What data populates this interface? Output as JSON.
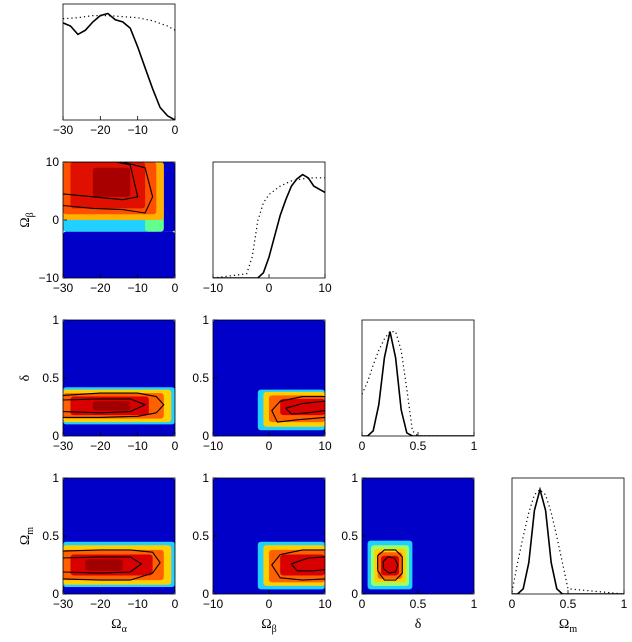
{
  "chart_data": {
    "type": "triangle-plot",
    "description_free": true,
    "parameters": [
      {
        "key": "Oa",
        "label_main": "Ω",
        "label_sub": "α",
        "range": [
          -30,
          0
        ],
        "ticks": [
          "-30",
          "-20",
          "-10",
          "0"
        ]
      },
      {
        "key": "Ob",
        "label_main": "Ω",
        "label_sub": "β",
        "range": [
          -10,
          10
        ],
        "ticks": [
          "-10",
          "0",
          "10"
        ]
      },
      {
        "key": "d",
        "label_main": "δ",
        "label_sub": "",
        "range": [
          0,
          1
        ],
        "ticks": [
          "0",
          "0.5",
          "1"
        ]
      },
      {
        "key": "Om",
        "label_main": "Ω",
        "label_sub": "m",
        "range": [
          0,
          1
        ],
        "ticks": [
          "0",
          "0.5",
          "1"
        ]
      }
    ],
    "marginals": [
      {
        "param": "Oa",
        "solid": {
          "x": [
            -30,
            -28,
            -26,
            -24,
            -22,
            -20,
            -18,
            -16,
            -14,
            -12,
            -10,
            -8,
            -6,
            -4,
            -2,
            0
          ],
          "y": [
            0.93,
            0.9,
            0.82,
            0.86,
            0.94,
            1.0,
            1.02,
            0.96,
            0.94,
            0.88,
            0.7,
            0.5,
            0.3,
            0.12,
            0.04,
            0.0
          ]
        },
        "dotted": {
          "x": [
            -30,
            -26,
            -22,
            -18,
            -14,
            -10,
            -6,
            -2,
            0
          ],
          "y": [
            0.97,
            0.98,
            1.0,
            1.0,
            0.99,
            0.98,
            0.95,
            0.9,
            0.86
          ]
        }
      },
      {
        "param": "Ob",
        "solid": {
          "x": [
            -10,
            -4,
            -2,
            -1,
            0,
            1,
            2,
            3,
            4,
            5,
            6,
            7,
            8,
            9,
            10
          ],
          "y": [
            0,
            0,
            0.0,
            0.05,
            0.2,
            0.4,
            0.6,
            0.75,
            0.88,
            0.95,
            0.99,
            0.96,
            0.88,
            0.85,
            0.82
          ]
        },
        "dotted": {
          "x": [
            -10,
            -4,
            -3,
            -2,
            -1,
            0,
            2,
            4,
            6,
            8,
            10
          ],
          "y": [
            0,
            0.04,
            0.2,
            0.55,
            0.72,
            0.8,
            0.88,
            0.93,
            0.95,
            0.96,
            0.96
          ]
        }
      },
      {
        "param": "d",
        "solid": {
          "x": [
            0,
            0.05,
            0.1,
            0.15,
            0.2,
            0.25,
            0.3,
            0.35,
            0.4,
            0.45,
            0.5,
            1
          ],
          "y": [
            0,
            0,
            0.05,
            0.3,
            0.75,
            1.0,
            0.75,
            0.25,
            0.03,
            0,
            0,
            0
          ]
        },
        "dotted": {
          "x": [
            0,
            0.05,
            0.1,
            0.15,
            0.2,
            0.25,
            0.3,
            0.35,
            0.4,
            0.45,
            0.5,
            1
          ],
          "y": [
            0.4,
            0.52,
            0.68,
            0.82,
            0.93,
            1.0,
            1.0,
            0.82,
            0.45,
            0.05,
            0,
            0
          ]
        }
      },
      {
        "param": "Om",
        "solid": {
          "x": [
            0,
            0.05,
            0.1,
            0.15,
            0.2,
            0.25,
            0.3,
            0.35,
            0.4,
            0.45,
            1
          ],
          "y": [
            0,
            0,
            0.05,
            0.3,
            0.8,
            1.0,
            0.8,
            0.3,
            0.05,
            0,
            0
          ]
        },
        "dotted": {
          "x": [
            0,
            0.05,
            0.1,
            0.15,
            0.2,
            0.25,
            0.3,
            0.35,
            0.4,
            0.45,
            0.5,
            1
          ],
          "y": [
            0.02,
            0.3,
            0.55,
            0.78,
            0.95,
            1.0,
            0.95,
            0.78,
            0.55,
            0.3,
            0.05,
            0
          ]
        }
      }
    ],
    "joints": [
      {
        "x": "Oa",
        "y": "Ob",
        "bands": [
          {
            "x0": -30,
            "x1": 0,
            "y0": -10,
            "y1": -2,
            "color": "#0000c8"
          },
          {
            "x0": -30,
            "x1": -4,
            "y0": -2,
            "y1": 0,
            "color": "#20d0ff"
          },
          {
            "x0": -4,
            "x1": 0,
            "y0": -2,
            "y1": 10,
            "color": "#0000c8"
          },
          {
            "x0": -8,
            "x1": -3,
            "y0": -2,
            "y1": 10,
            "color": "#60ff90"
          },
          {
            "x0": -30,
            "x1": -3,
            "y0": 0,
            "y1": 10,
            "color": "#ffb000"
          },
          {
            "x0": -30,
            "x1": -5,
            "y0": 1,
            "y1": 10,
            "color": "#ff5000"
          },
          {
            "x0": -28,
            "x1": -8,
            "y0": 2,
            "y1": 10,
            "color": "#e01000"
          },
          {
            "x0": -22,
            "x1": -12,
            "y0": 4,
            "y1": 9,
            "color": "#a80000"
          }
        ],
        "contours": [
          {
            "x": [
              -30,
              -22,
              -14,
              -8,
              -6,
              -8,
              -14,
              -22,
              -30
            ],
            "y": [
              2.5,
              2.0,
              1.8,
              1.2,
              4,
              9,
              10,
              10,
              10
            ]
          },
          {
            "x": [
              -30,
              -22,
              -14,
              -10,
              -12,
              -16,
              -22,
              -30
            ],
            "y": [
              4.5,
              4.0,
              3.5,
              4.0,
              9.5,
              10,
              10,
              10
            ]
          }
        ]
      },
      {
        "x": "Oa",
        "y": "d",
        "bands": [
          {
            "x0": -30,
            "x1": 0,
            "y0": 0,
            "y1": 1,
            "color": "#0000c8"
          },
          {
            "x0": -30,
            "x1": 0,
            "y0": 0.1,
            "y1": 0.42,
            "color": "#20d0ff"
          },
          {
            "x0": -30,
            "x1": -1,
            "y0": 0.12,
            "y1": 0.4,
            "color": "#ffd000"
          },
          {
            "x0": -30,
            "x1": -3,
            "y0": 0.15,
            "y1": 0.37,
            "color": "#ff6000"
          },
          {
            "x0": -28,
            "x1": -7,
            "y0": 0.18,
            "y1": 0.34,
            "color": "#d80000"
          },
          {
            "x0": -22,
            "x1": -12,
            "y0": 0.22,
            "y1": 0.3,
            "color": "#a00000"
          }
        ],
        "contours": [
          {
            "x": [
              -30,
              -20,
              -10,
              -5,
              -3,
              -5,
              -10,
              -20,
              -30
            ],
            "y": [
              0.16,
              0.16,
              0.17,
              0.2,
              0.27,
              0.34,
              0.37,
              0.37,
              0.35
            ]
          },
          {
            "x": [
              -30,
              -20,
              -12,
              -8,
              -12,
              -20,
              -30
            ],
            "y": [
              0.21,
              0.2,
              0.21,
              0.27,
              0.32,
              0.32,
              0.31
            ]
          }
        ]
      },
      {
        "x": "Ob",
        "y": "d",
        "bands": [
          {
            "x0": -10,
            "x1": 10,
            "y0": 0,
            "y1": 1,
            "color": "#0000c8"
          },
          {
            "x0": -2,
            "x1": 10,
            "y0": 0.05,
            "y1": 0.4,
            "color": "#20d0ff"
          },
          {
            "x0": -1,
            "x1": 10,
            "y0": 0.08,
            "y1": 0.38,
            "color": "#ffd000"
          },
          {
            "x0": 0,
            "x1": 10,
            "y0": 0.12,
            "y1": 0.35,
            "color": "#ff6000"
          },
          {
            "x0": 2,
            "x1": 10,
            "y0": 0.18,
            "y1": 0.32,
            "color": "#d80000"
          }
        ],
        "contours": [
          {
            "x": [
              10,
              6,
              2,
              0.5,
              1.5,
              5,
              10
            ],
            "y": [
              0.34,
              0.34,
              0.3,
              0.22,
              0.12,
              0.14,
              0.16
            ]
          },
          {
            "x": [
              10,
              6,
              3,
              4,
              7,
              10
            ],
            "y": [
              0.3,
              0.28,
              0.24,
              0.19,
              0.2,
              0.22
            ]
          }
        ]
      },
      {
        "x": "Oa",
        "y": "Om",
        "bands": [
          {
            "x0": -30,
            "x1": 0,
            "y0": 0,
            "y1": 1,
            "color": "#0000c8"
          },
          {
            "x0": -30,
            "x1": 0,
            "y0": 0.06,
            "y1": 0.45,
            "color": "#20d0ff"
          },
          {
            "x0": -30,
            "x1": -1,
            "y0": 0.08,
            "y1": 0.42,
            "color": "#ffd000"
          },
          {
            "x0": -30,
            "x1": -3,
            "y0": 0.12,
            "y1": 0.38,
            "color": "#ff6000"
          },
          {
            "x0": -28,
            "x1": -6,
            "y0": 0.16,
            "y1": 0.34,
            "color": "#d80000"
          },
          {
            "x0": -24,
            "x1": -14,
            "y0": 0.2,
            "y1": 0.3,
            "color": "#a00000"
          }
        ],
        "contours": [
          {
            "x": [
              -30,
              -20,
              -12,
              -6,
              -4,
              -6,
              -12,
              -20,
              -30
            ],
            "y": [
              0.13,
              0.12,
              0.12,
              0.18,
              0.27,
              0.36,
              0.38,
              0.38,
              0.37
            ]
          },
          {
            "x": [
              -30,
              -20,
              -12,
              -9,
              -12,
              -20,
              -30
            ],
            "y": [
              0.19,
              0.18,
              0.19,
              0.26,
              0.32,
              0.32,
              0.31
            ]
          }
        ]
      },
      {
        "x": "Ob",
        "y": "Om",
        "bands": [
          {
            "x0": -10,
            "x1": 10,
            "y0": 0,
            "y1": 1,
            "color": "#0000c8"
          },
          {
            "x0": -2,
            "x1": 10,
            "y0": 0.04,
            "y1": 0.45,
            "color": "#20d0ff"
          },
          {
            "x0": -1,
            "x1": 10,
            "y0": 0.07,
            "y1": 0.42,
            "color": "#ffd000"
          },
          {
            "x0": 0,
            "x1": 10,
            "y0": 0.1,
            "y1": 0.38,
            "color": "#ff6000"
          },
          {
            "x0": 2,
            "x1": 10,
            "y0": 0.16,
            "y1": 0.34,
            "color": "#d80000"
          }
        ],
        "contours": [
          {
            "x": [
              10,
              6,
              2,
              0.5,
              2,
              6,
              10
            ],
            "y": [
              0.38,
              0.38,
              0.34,
              0.25,
              0.14,
              0.12,
              0.13
            ]
          },
          {
            "x": [
              10,
              7,
              4,
              5,
              8,
              10
            ],
            "y": [
              0.32,
              0.31,
              0.26,
              0.2,
              0.2,
              0.21
            ]
          }
        ]
      },
      {
        "x": "d",
        "y": "Om",
        "bands": [
          {
            "x0": 0,
            "x1": 1,
            "y0": 0,
            "y1": 1,
            "color": "#0000c8"
          },
          {
            "x0": 0.05,
            "x1": 0.45,
            "y0": 0.04,
            "y1": 0.46,
            "color": "#20d0ff"
          },
          {
            "x0": 0.08,
            "x1": 0.42,
            "y0": 0.07,
            "y1": 0.42,
            "color": "#a0ff60"
          },
          {
            "x0": 0.11,
            "x1": 0.39,
            "y0": 0.1,
            "y1": 0.39,
            "color": "#ffd000"
          },
          {
            "x0": 0.14,
            "x1": 0.36,
            "y0": 0.13,
            "y1": 0.36,
            "color": "#ff6000"
          },
          {
            "x0": 0.17,
            "x1": 0.33,
            "y0": 0.16,
            "y1": 0.33,
            "color": "#d80000"
          }
        ],
        "contours": [
          {
            "x": [
              0.14,
              0.2,
              0.3,
              0.36,
              0.36,
              0.3,
              0.2,
              0.14,
              0.14
            ],
            "y": [
              0.2,
              0.12,
              0.12,
              0.18,
              0.32,
              0.38,
              0.38,
              0.33,
              0.2
            ]
          },
          {
            "x": [
              0.19,
              0.24,
              0.3,
              0.32,
              0.29,
              0.23,
              0.19,
              0.19
            ],
            "y": [
              0.22,
              0.18,
              0.19,
              0.25,
              0.31,
              0.32,
              0.28,
              0.22
            ]
          }
        ]
      }
    ]
  }
}
